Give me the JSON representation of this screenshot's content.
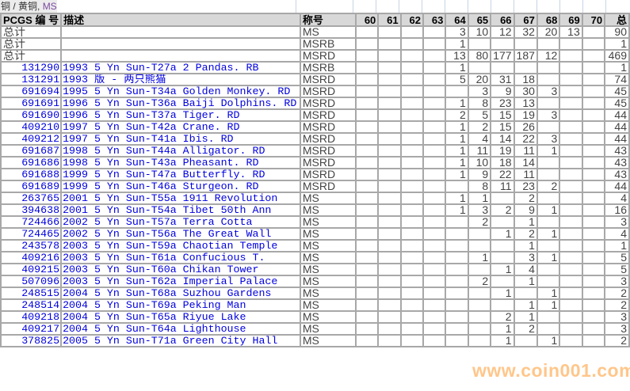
{
  "title": {
    "metal": "铜 / 黄铜,",
    "grade": "MS"
  },
  "headers": {
    "pcgs": "PCGS 编 号",
    "desc": "描述",
    "designation": "称号",
    "grades": [
      "60",
      "61",
      "62",
      "63",
      "64",
      "65",
      "66",
      "67",
      "68",
      "69",
      "70"
    ],
    "total": "总"
  },
  "rows": [
    {
      "id": "总计",
      "desc": "",
      "des": "MS",
      "g": [
        "",
        "",
        "",
        "",
        "3",
        "10",
        "12",
        "32",
        "20",
        "13",
        ""
      ],
      "total": "90"
    },
    {
      "id": "总计",
      "desc": "",
      "des": "MSRB",
      "g": [
        "",
        "",
        "",
        "",
        "1",
        "",
        "",
        "",
        "",
        "",
        ""
      ],
      "total": "1"
    },
    {
      "id": "总计",
      "desc": "",
      "des": "MSRD",
      "g": [
        "",
        "",
        "",
        "",
        "13",
        "80",
        "177",
        "187",
        "12",
        "",
        ""
      ],
      "total": "469"
    },
    {
      "id": "131290",
      "desc": "1993 5 Yn Sun-T27a 2 Pandas. RB",
      "des": "MSRB",
      "g": [
        "",
        "",
        "",
        "",
        "1",
        "",
        "",
        "",
        "",
        "",
        ""
      ],
      "total": "1"
    },
    {
      "id": "131291",
      "desc": "1993 版 - 两只熊猫",
      "des": "MSRD",
      "g": [
        "",
        "",
        "",
        "",
        "5",
        "20",
        "31",
        "18",
        "",
        "",
        ""
      ],
      "total": "74"
    },
    {
      "id": "691694",
      "desc": "1995 5 Yn Sun-T34a Golden Monkey. RD",
      "des": "MSRD",
      "g": [
        "",
        "",
        "",
        "",
        "",
        "3",
        "9",
        "30",
        "3",
        "",
        ""
      ],
      "total": "45"
    },
    {
      "id": "691691",
      "desc": "1996 5 Yn Sun-T36a Baiji Dolphins. RD",
      "des": "MSRD",
      "g": [
        "",
        "",
        "",
        "",
        "1",
        "8",
        "23",
        "13",
        "",
        "",
        ""
      ],
      "total": "45"
    },
    {
      "id": "691690",
      "desc": "1996 5 Yn Sun-T37a Tiger. RD",
      "des": "MSRD",
      "g": [
        "",
        "",
        "",
        "",
        "2",
        "5",
        "15",
        "19",
        "3",
        "",
        ""
      ],
      "total": "44"
    },
    {
      "id": "409210",
      "desc": "1997 5 Yn Sun-T42a Crane. RD",
      "des": "MSRD",
      "g": [
        "",
        "",
        "",
        "",
        "1",
        "2",
        "15",
        "26",
        "",
        "",
        ""
      ],
      "total": "44"
    },
    {
      "id": "409212",
      "desc": "1997 5 Yn Sun-T41a Ibis. RD",
      "des": "MSRD",
      "g": [
        "",
        "",
        "",
        "",
        "1",
        "4",
        "14",
        "22",
        "3",
        "",
        ""
      ],
      "total": "44"
    },
    {
      "id": "691687",
      "desc": "1998 5 Yn Sun-T44a Alligator. RD",
      "des": "MSRD",
      "g": [
        "",
        "",
        "",
        "",
        "1",
        "11",
        "19",
        "11",
        "1",
        "",
        ""
      ],
      "total": "43"
    },
    {
      "id": "691686",
      "desc": "1998 5 Yn Sun-T43a Pheasant. RD",
      "des": "MSRD",
      "g": [
        "",
        "",
        "",
        "",
        "1",
        "10",
        "18",
        "14",
        "",
        "",
        ""
      ],
      "total": "43"
    },
    {
      "id": "691688",
      "desc": "1999 5 Yn Sun-T47a Butterfly. RD",
      "des": "MSRD",
      "g": [
        "",
        "",
        "",
        "",
        "1",
        "9",
        "22",
        "11",
        "",
        "",
        ""
      ],
      "total": "43"
    },
    {
      "id": "691689",
      "desc": "1999 5 Yn Sun-T46a Sturgeon. RD",
      "des": "MSRD",
      "g": [
        "",
        "",
        "",
        "",
        "",
        "8",
        "11",
        "23",
        "2",
        "",
        ""
      ],
      "total": "44"
    },
    {
      "id": "263765",
      "desc": "2001 5 Yn Sun-T55a 1911 Revolution",
      "des": "MS",
      "g": [
        "",
        "",
        "",
        "",
        "1",
        "1",
        "",
        "2",
        "",
        "",
        ""
      ],
      "total": "4"
    },
    {
      "id": "394638",
      "desc": "2001 5 Yn Sun-T54a Tibet 50th Ann",
      "des": "MS",
      "g": [
        "",
        "",
        "",
        "",
        "1",
        "3",
        "2",
        "9",
        "1",
        "",
        ""
      ],
      "total": "16"
    },
    {
      "id": "724466",
      "desc": "2002 5 Yn Sun-T57a Terra Cotta",
      "des": "MS",
      "g": [
        "",
        "",
        "",
        "",
        "",
        "2",
        "",
        "1",
        "",
        "",
        ""
      ],
      "total": "3"
    },
    {
      "id": "724465",
      "desc": "2002 5 Yn Sun-T56a The Great Wall",
      "des": "MS",
      "g": [
        "",
        "",
        "",
        "",
        "",
        "",
        "1",
        "2",
        "1",
        "",
        ""
      ],
      "total": "4"
    },
    {
      "id": "243578",
      "desc": "2003 5 Yn Sun-T59a Chaotian Temple",
      "des": "MS",
      "g": [
        "",
        "",
        "",
        "",
        "",
        "",
        "",
        "1",
        "",
        "",
        ""
      ],
      "total": "1"
    },
    {
      "id": "409216",
      "desc": "2003 5 Yn Sun-T61a Confucious T.",
      "des": "MS",
      "g": [
        "",
        "",
        "",
        "",
        "",
        "1",
        "",
        "3",
        "1",
        "",
        ""
      ],
      "total": "5"
    },
    {
      "id": "409215",
      "desc": "2003 5 Yn Sun-T60a Chikan Tower",
      "des": "MS",
      "g": [
        "",
        "",
        "",
        "",
        "",
        "",
        "1",
        "4",
        "",
        "",
        ""
      ],
      "total": "5"
    },
    {
      "id": "507096",
      "desc": "2003 5 Yn Sun-T62a Imperial Palace",
      "des": "MS",
      "g": [
        "",
        "",
        "",
        "",
        "",
        "2",
        "",
        "1",
        "",
        "",
        ""
      ],
      "total": "3"
    },
    {
      "id": "248515",
      "desc": "2004 5 Yn Sun-T68a Suzhou Gardens",
      "des": "MS",
      "g": [
        "",
        "",
        "",
        "",
        "",
        "",
        "1",
        "",
        "1",
        "",
        ""
      ],
      "total": "2"
    },
    {
      "id": "248514",
      "desc": "2004 5 Yn Sun-T69a Peking Man",
      "des": "MS",
      "g": [
        "",
        "",
        "",
        "",
        "",
        "",
        "",
        "1",
        "1",
        "",
        ""
      ],
      "total": "2"
    },
    {
      "id": "409218",
      "desc": "2004 5 Yn Sun-T65a Riyue Lake",
      "des": "MS",
      "g": [
        "",
        "",
        "",
        "",
        "",
        "",
        "2",
        "1",
        "",
        "",
        ""
      ],
      "total": "3"
    },
    {
      "id": "409217",
      "desc": "2004 5 Yn Sun-T64a Lighthouse",
      "des": "MS",
      "g": [
        "",
        "",
        "",
        "",
        "",
        "",
        "1",
        "2",
        "",
        "",
        ""
      ],
      "total": "3"
    },
    {
      "id": "378825",
      "desc": "2005 5 Yn Sun-T71a Green City Hall",
      "des": "MS",
      "g": [
        "",
        "",
        "",
        "",
        "",
        "",
        "1",
        "",
        "1",
        "",
        ""
      ],
      "total": "2"
    }
  ],
  "watermark": "www.coin001.com",
  "colors": {
    "link": "#0000e0",
    "header_bg": "#d8d8d8",
    "grid": "#a8a8a8",
    "watermark": "#ffa03c"
  }
}
